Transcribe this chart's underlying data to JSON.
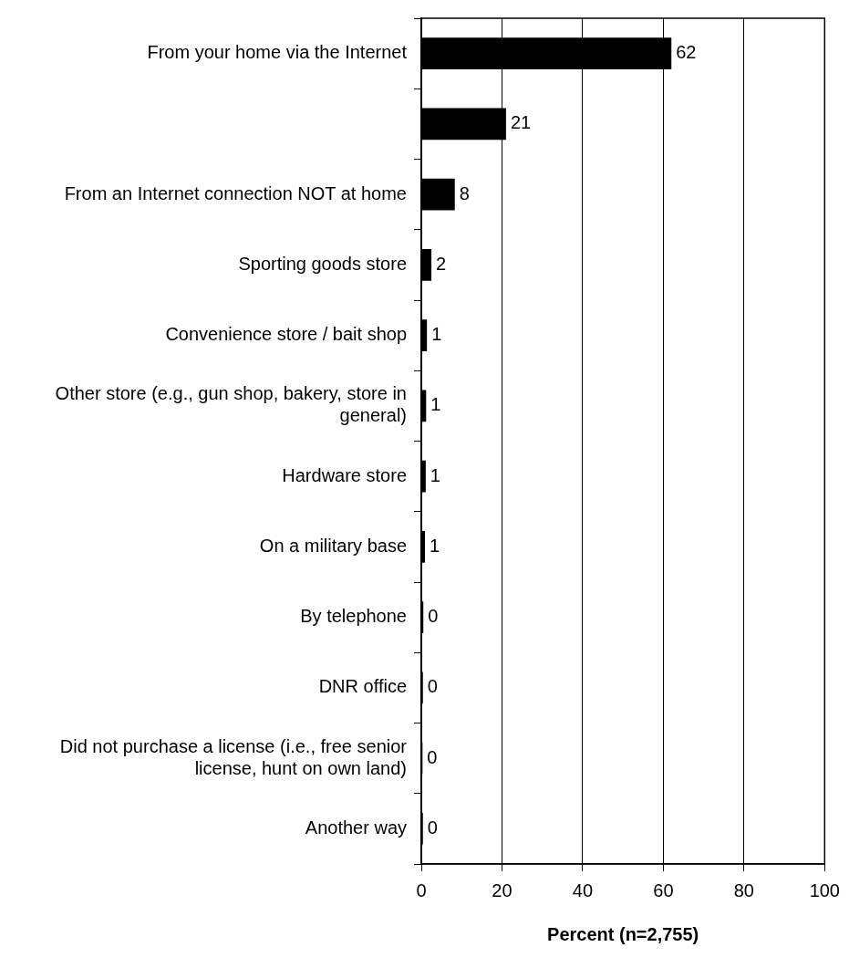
{
  "chart_data": {
    "type": "bar",
    "orientation": "horizontal",
    "xlabel": "Percent (n=2,755)",
    "categories": [
      "From your home via the Internet",
      null,
      "From an Internet connection NOT at home",
      "Sporting goods store",
      "Convenience store / bait shop",
      "Other store (e.g., gun shop, bakery, store in general)",
      "Hardware store",
      "On a military base",
      "By telephone",
      "DNR office",
      "Did not purchase a license (i.e., free senior license, hunt on own land)",
      "Another way"
    ],
    "values": [
      62,
      21,
      8.3,
      2.5,
      1.4,
      1.2,
      1.1,
      0.9,
      0.5,
      0.4,
      0.3,
      0.4
    ],
    "value_labels": [
      "62",
      "21",
      "8",
      "2",
      "1",
      "1",
      "1",
      "1",
      "0",
      "0",
      "0",
      "0"
    ],
    "color": "#000000",
    "xlim": [
      0,
      100
    ],
    "xticks": [
      0,
      20,
      40,
      60,
      80,
      100
    ],
    "grid": "x",
    "legend": false
  }
}
